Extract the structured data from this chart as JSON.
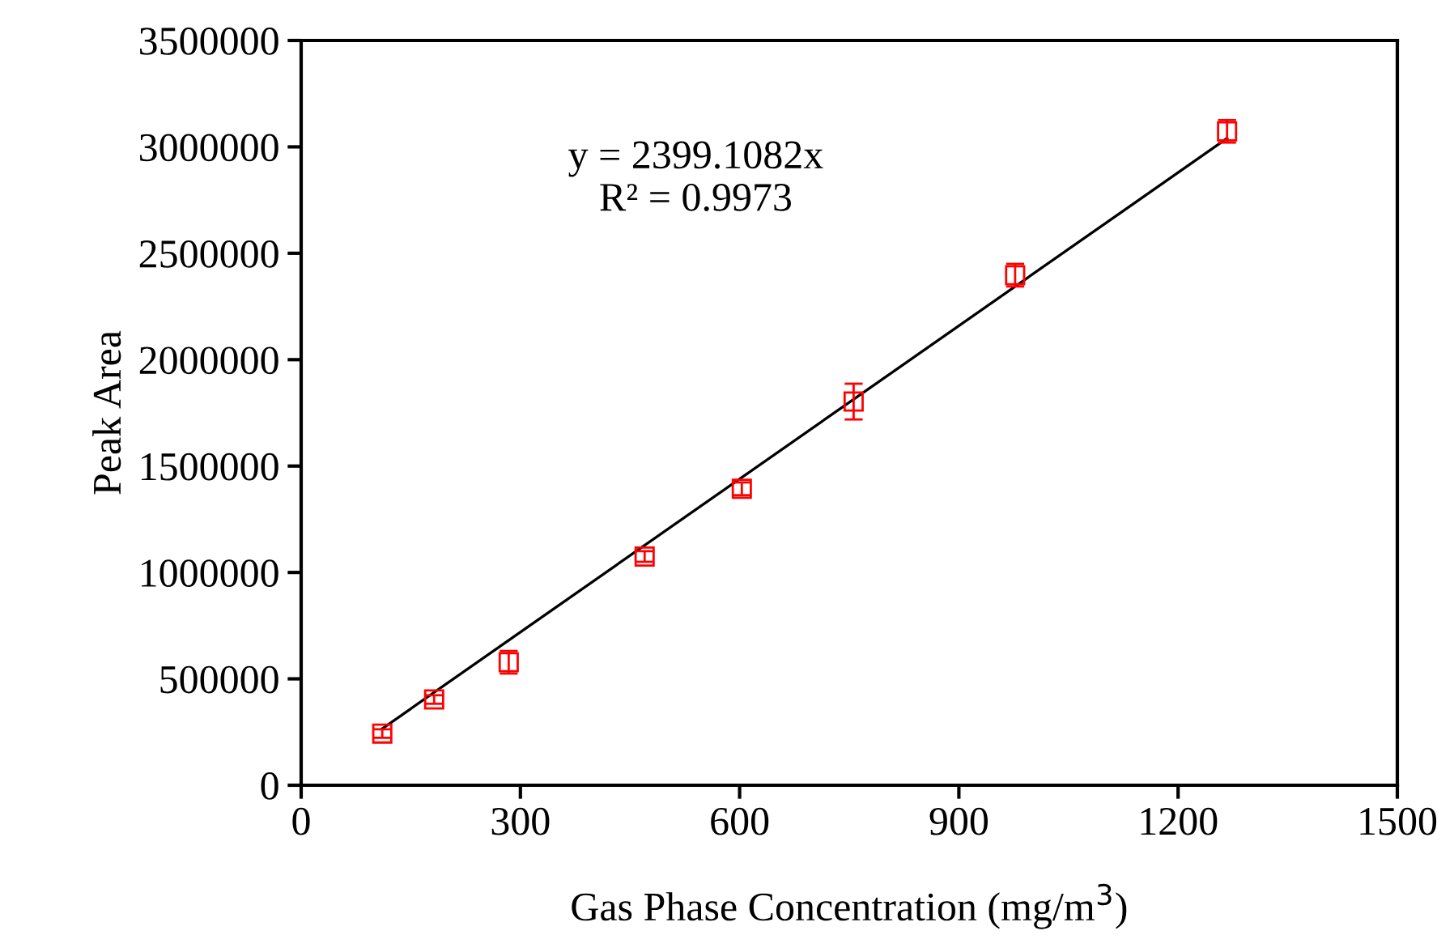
{
  "chart_data": {
    "type": "scatter",
    "xlabel": "Gas Phase Concentration (mg/m$^{3}$)",
    "ylabel": "Peak Area",
    "annotations": [
      "y = 2399.1082x",
      "R² = 0.9973"
    ],
    "series": [
      {
        "color": "#ff0000",
        "marker": "square",
        "x": [
          111,
          182,
          284,
          470,
          603,
          756,
          977,
          1267
        ],
        "values": [
          243000,
          403000,
          578000,
          1075000,
          1393000,
          1803000,
          2397000,
          3073000
        ],
        "errors": [
          20000,
          20000,
          53000,
          25000,
          30000,
          84000,
          53000,
          53000
        ]
      },
      {
        "type": "line",
        "color": "#000000",
        "marker": "none",
        "line_style": "solid",
        "x": [
          111,
          1267
        ],
        "values": [
          266000,
          3040000
        ]
      }
    ],
    "xlim": [
      0,
      1500
    ],
    "xticks": [
      0,
      300,
      600,
      900,
      1200,
      1500
    ],
    "ylim": [
      0,
      3500000
    ],
    "yticks": [
      0,
      500000,
      1000000,
      1500000,
      2000000,
      2500000,
      3000000,
      3500000
    ],
    "grid": false
  }
}
